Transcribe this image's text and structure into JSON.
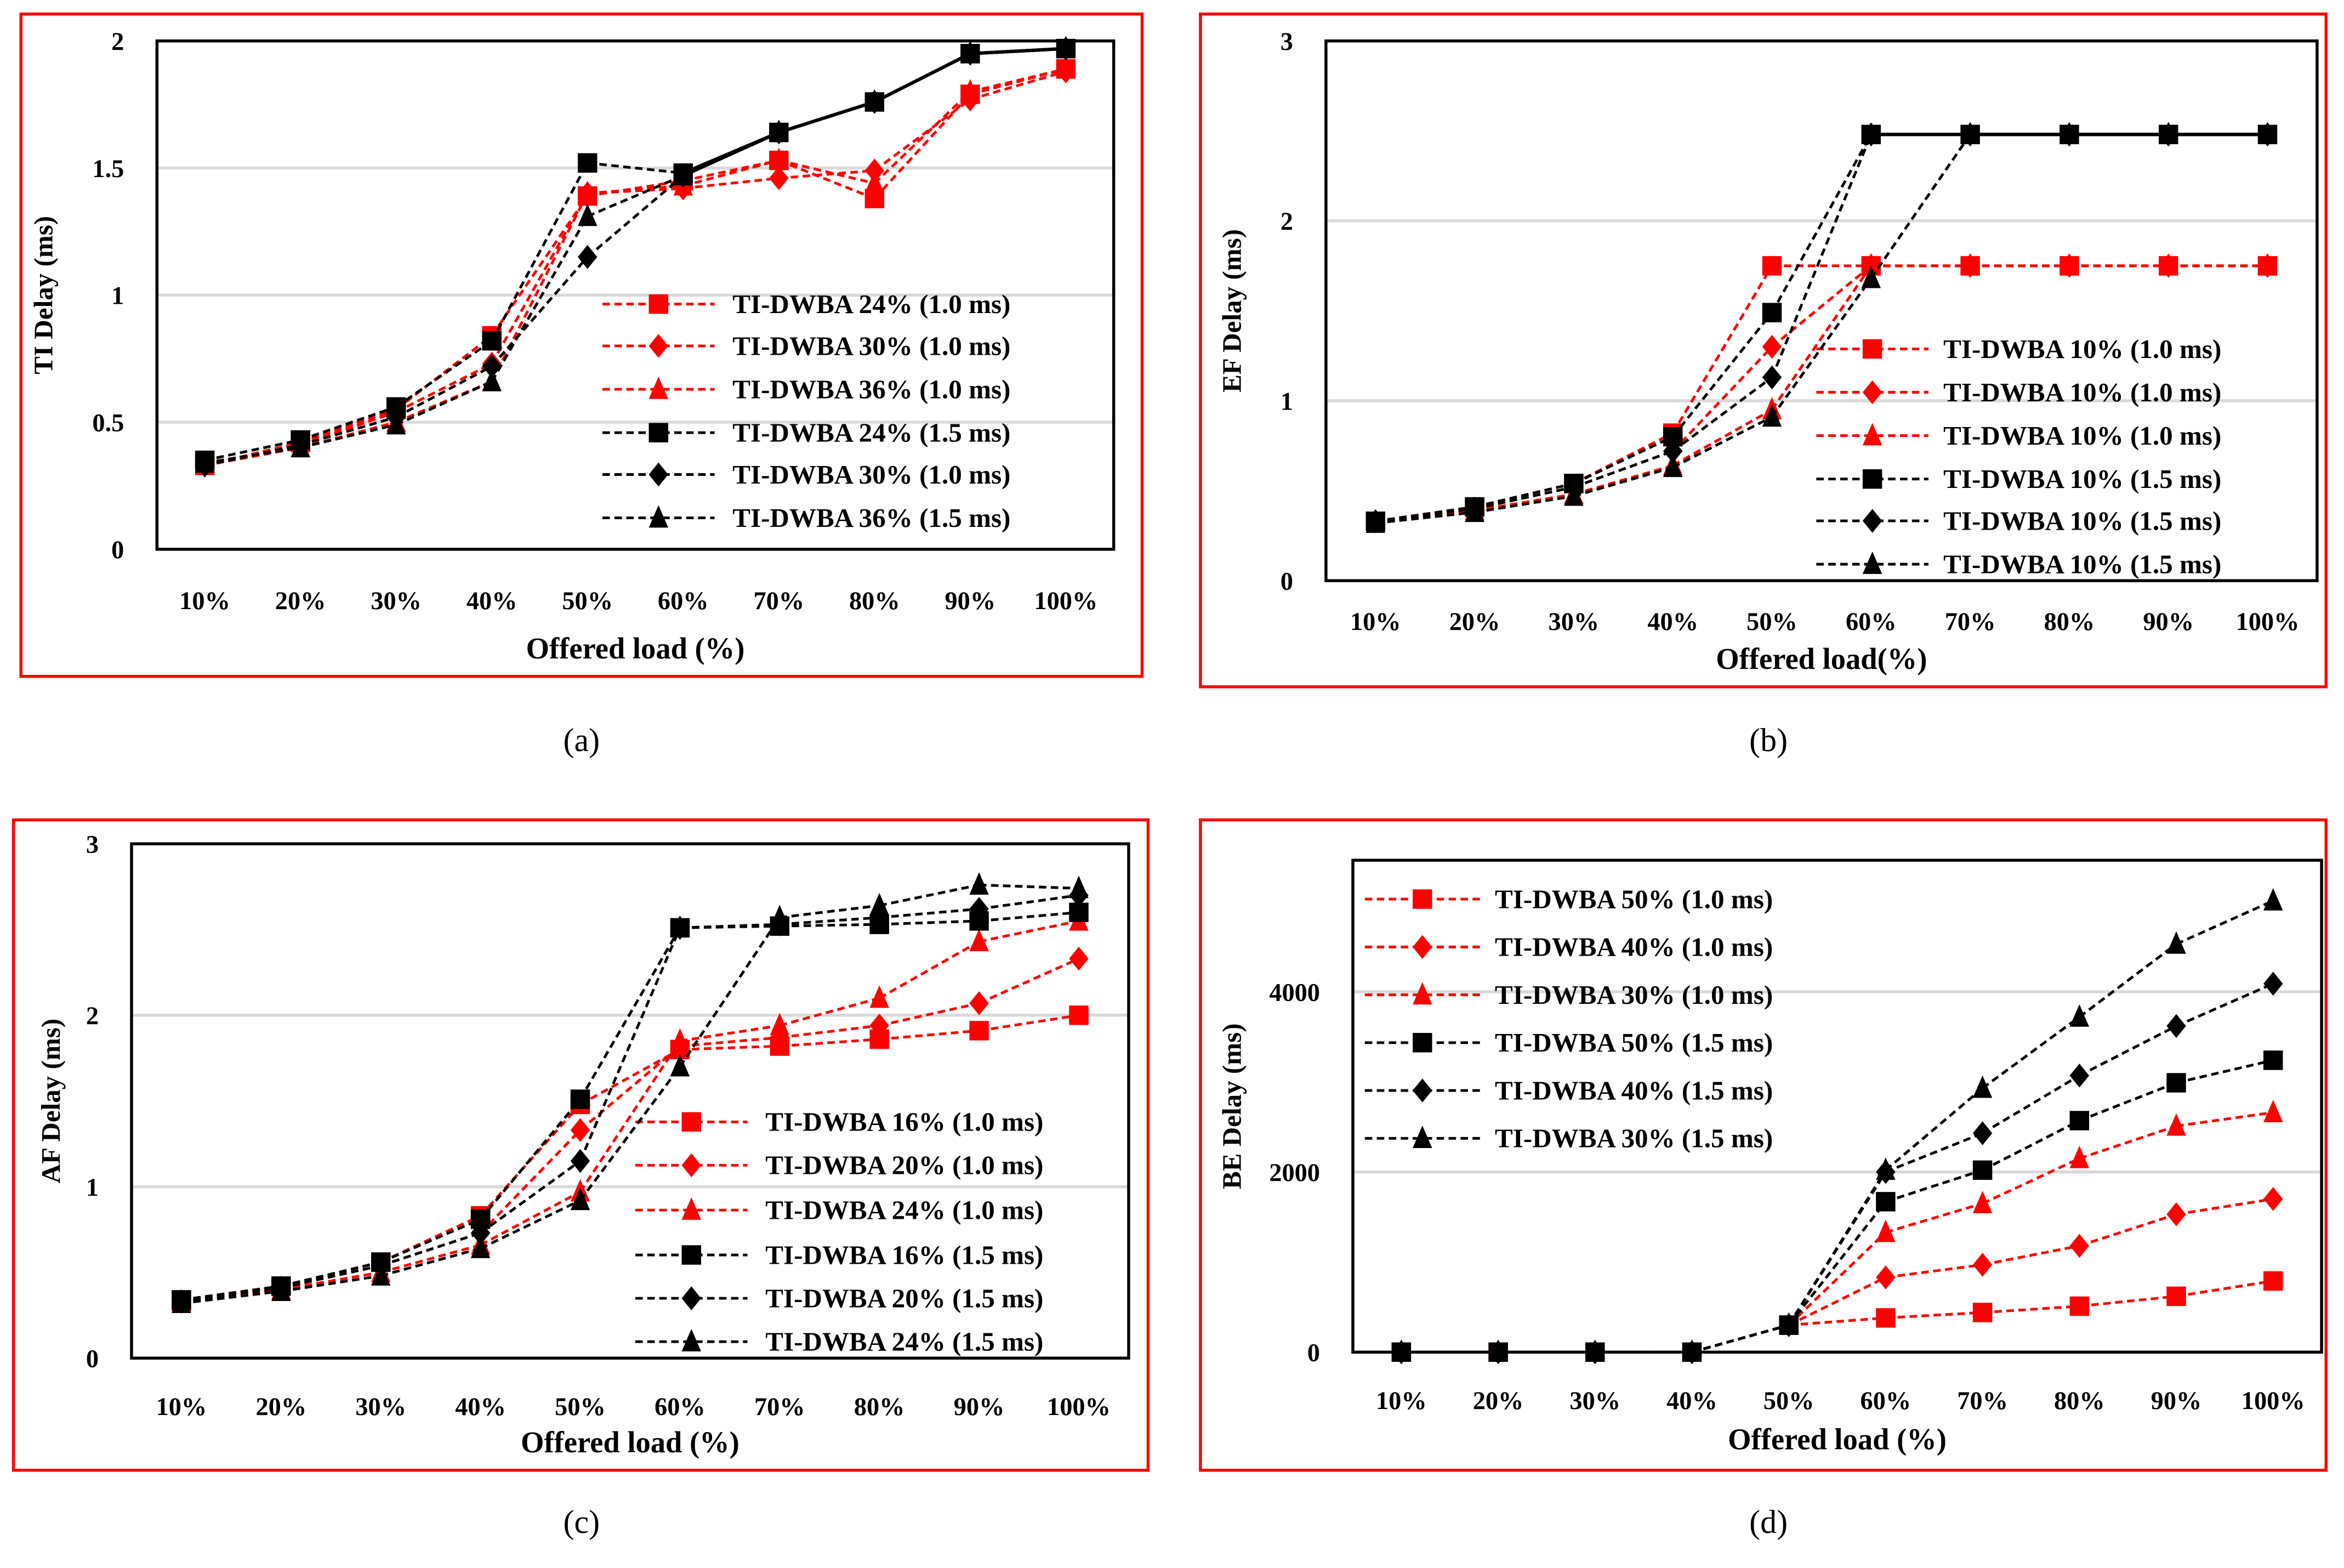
{
  "colors": {
    "red": "#ff0000",
    "black": "#000000",
    "grid": "#d9d9d9",
    "frame": "#ff0000"
  },
  "chart_data": [
    {
      "id": "a",
      "type": "line",
      "caption": "(a)",
      "title": "",
      "xlabel": "Offered load (%)",
      "ylabel": "TI Delay (ms)",
      "categories": [
        "10%",
        "20%",
        "30%",
        "40%",
        "50%",
        "60%",
        "70%",
        "80%",
        "90%",
        "100%"
      ],
      "ylim": [
        0,
        2
      ],
      "yticks": [
        0,
        0.5,
        1,
        1.5,
        2
      ],
      "ytick_labels": [
        "0",
        "0.5",
        "1",
        "1.5",
        "2"
      ],
      "grid": true,
      "legend": "center-right",
      "series": [
        {
          "name": "TI-DWBA 24% (1.0 ms)",
          "color": "red",
          "marker": "square",
          "values": [
            0.33,
            0.42,
            0.55,
            0.84,
            1.39,
            1.45,
            1.53,
            1.38,
            1.79,
            1.89
          ]
        },
        {
          "name": "TI-DWBA 30% (1.0 ms)",
          "color": "red",
          "marker": "diamond",
          "values": [
            0.33,
            0.41,
            0.54,
            0.73,
            1.4,
            1.42,
            1.46,
            1.49,
            1.77,
            1.88
          ]
        },
        {
          "name": "TI-DWBA 36% (1.0 ms)",
          "color": "red",
          "marker": "triangle",
          "values": [
            0.33,
            0.4,
            0.5,
            0.66,
            1.4,
            1.43,
            1.53,
            1.44,
            1.8,
            1.89
          ]
        },
        {
          "name": "TI-DWBA 24% (1.5 ms)",
          "color": "black",
          "marker": "square",
          "solid_from": 5,
          "values": [
            0.35,
            0.43,
            0.56,
            0.82,
            1.52,
            1.48,
            1.64,
            1.76,
            1.95,
            1.97
          ]
        },
        {
          "name": "TI-DWBA 30% (1.0 ms)",
          "color": "black",
          "marker": "diamond",
          "solid_from": 5,
          "values": [
            0.33,
            0.41,
            0.52,
            0.72,
            1.15,
            1.47,
            1.64,
            1.76,
            1.95,
            1.97
          ]
        },
        {
          "name": "TI-DWBA 36% (1.5 ms)",
          "color": "black",
          "marker": "triangle",
          "solid_from": 5,
          "values": [
            0.34,
            0.4,
            0.49,
            0.66,
            1.31,
            1.47,
            1.64,
            1.76,
            1.95,
            1.97
          ]
        }
      ]
    },
    {
      "id": "b",
      "type": "line",
      "caption": "(b)",
      "title": "",
      "xlabel": "Offered load(%)",
      "ylabel": "EF Delay (ms)",
      "categories": [
        "10%",
        "20%",
        "30%",
        "40%",
        "50%",
        "60%",
        "70%",
        "80%",
        "90%",
        "100%"
      ],
      "ylim": [
        0,
        3
      ],
      "yticks": [
        0,
        1,
        2,
        3
      ],
      "ytick_labels": [
        "0",
        "1",
        "2",
        "3"
      ],
      "grid": true,
      "legend": "center-right",
      "series": [
        {
          "name": "TI-DWBA 10% (1.0 ms)",
          "color": "red",
          "marker": "square",
          "values": [
            0.33,
            0.41,
            0.54,
            0.82,
            1.75,
            1.75,
            1.75,
            1.75,
            1.75,
            1.75
          ]
        },
        {
          "name": "TI-DWBA 10% (1.0 ms)",
          "color": "red",
          "marker": "diamond",
          "values": [
            0.33,
            0.4,
            0.52,
            0.72,
            1.3,
            1.75,
            1.75,
            1.75,
            1.75,
            1.75
          ]
        },
        {
          "name": "TI-DWBA 10% (1.0 ms)",
          "color": "red",
          "marker": "triangle",
          "values": [
            0.32,
            0.39,
            0.48,
            0.64,
            0.95,
            1.75,
            1.75,
            1.75,
            1.75,
            1.75
          ]
        },
        {
          "name": "TI-DWBA 10% (1.5 ms)",
          "color": "black",
          "marker": "square",
          "solid_from": 5,
          "values": [
            0.33,
            0.41,
            0.54,
            0.8,
            1.49,
            2.48,
            2.48,
            2.48,
            2.48,
            2.48
          ]
        },
        {
          "name": "TI-DWBA 10% (1.5 ms)",
          "color": "black",
          "marker": "diamond",
          "solid_from": 5,
          "values": [
            0.33,
            0.4,
            0.52,
            0.72,
            1.13,
            2.48,
            2.48,
            2.48,
            2.48,
            2.48
          ]
        },
        {
          "name": "TI-DWBA 10% (1.5 ms)",
          "color": "black",
          "marker": "triangle",
          "solid_from": 6,
          "values": [
            0.32,
            0.38,
            0.47,
            0.63,
            0.91,
            1.68,
            2.48,
            2.48,
            2.48,
            2.48
          ]
        }
      ]
    },
    {
      "id": "c",
      "type": "line",
      "caption": "(c)",
      "title": "",
      "xlabel": "Offered load (%)",
      "ylabel": "AF Delay (ms)",
      "categories": [
        "10%",
        "20%",
        "30%",
        "40%",
        "50%",
        "60%",
        "70%",
        "80%",
        "90%",
        "100%"
      ],
      "ylim": [
        0,
        3
      ],
      "yticks": [
        0,
        1,
        2,
        3
      ],
      "ytick_labels": [
        "0",
        "1",
        "2",
        "3"
      ],
      "grid": true,
      "legend": "bottom-right",
      "series": [
        {
          "name": "TI-DWBA 16% (1.0 ms)",
          "color": "red",
          "marker": "square",
          "values": [
            0.33,
            0.42,
            0.56,
            0.83,
            1.48,
            1.8,
            1.82,
            1.86,
            1.91,
            2.0
          ]
        },
        {
          "name": "TI-DWBA 20% (1.0 ms)",
          "color": "red",
          "marker": "diamond",
          "values": [
            0.33,
            0.41,
            0.54,
            0.73,
            1.33,
            1.82,
            1.87,
            1.94,
            2.07,
            2.33
          ]
        },
        {
          "name": "TI-DWBA 24% (1.0 ms)",
          "color": "red",
          "marker": "triangle",
          "values": [
            0.32,
            0.4,
            0.5,
            0.66,
            0.97,
            1.85,
            1.94,
            2.1,
            2.43,
            2.55
          ]
        },
        {
          "name": "TI-DWBA 16% (1.5 ms)",
          "color": "black",
          "marker": "square",
          "values": [
            0.34,
            0.42,
            0.56,
            0.81,
            1.51,
            2.51,
            2.52,
            2.53,
            2.55,
            2.6
          ]
        },
        {
          "name": "TI-DWBA 20% (1.5 ms)",
          "color": "black",
          "marker": "diamond",
          "values": [
            0.33,
            0.41,
            0.54,
            0.73,
            1.15,
            2.51,
            2.53,
            2.57,
            2.62,
            2.7
          ]
        },
        {
          "name": "TI-DWBA 24% (1.5 ms)",
          "color": "black",
          "marker": "triangle",
          "values": [
            0.32,
            0.39,
            0.48,
            0.64,
            0.92,
            1.7,
            2.57,
            2.64,
            2.76,
            2.74
          ]
        }
      ]
    },
    {
      "id": "d",
      "type": "line",
      "caption": "(d)",
      "title": "",
      "xlabel": "Offered load (%)",
      "ylabel": "BE Delay (ms)",
      "categories": [
        "10%",
        "20%",
        "30%",
        "40%",
        "50%",
        "60%",
        "70%",
        "80%",
        "90%",
        "100%"
      ],
      "ylim": [
        0,
        5460
      ],
      "yticks": [
        0,
        2000,
        4000
      ],
      "ytick_labels": [
        "0",
        "2000",
        "4000"
      ],
      "grid": true,
      "legend": "top-left",
      "series": [
        {
          "name": "TI-DWBA 50% (1.0 ms)",
          "color": "red",
          "marker": "square",
          "values": [
            0,
            0,
            0,
            0,
            300,
            380,
            440,
            510,
            620,
            790
          ]
        },
        {
          "name": "TI-DWBA 40% (1.0 ms)",
          "color": "red",
          "marker": "diamond",
          "values": [
            0,
            0,
            0,
            0,
            300,
            830,
            970,
            1180,
            1530,
            1700
          ]
        },
        {
          "name": "TI-DWBA 30% (1.0 ms)",
          "color": "red",
          "marker": "triangle",
          "values": [
            0,
            0,
            0,
            0,
            300,
            1330,
            1650,
            2150,
            2510,
            2660
          ]
        },
        {
          "name": "TI-DWBA 50% (1.5 ms)",
          "color": "black",
          "marker": "square",
          "values": [
            0,
            0,
            0,
            0,
            300,
            1670,
            2020,
            2570,
            2990,
            3240
          ]
        },
        {
          "name": "TI-DWBA 40% (1.5 ms)",
          "color": "black",
          "marker": "diamond",
          "values": [
            0,
            0,
            0,
            0,
            300,
            2000,
            2430,
            3070,
            3620,
            4090
          ]
        },
        {
          "name": "TI-DWBA 30% (1.5 ms)",
          "color": "black",
          "marker": "triangle",
          "values": [
            0,
            0,
            0,
            0,
            300,
            2020,
            2930,
            3720,
            4530,
            5010
          ]
        }
      ]
    }
  ]
}
